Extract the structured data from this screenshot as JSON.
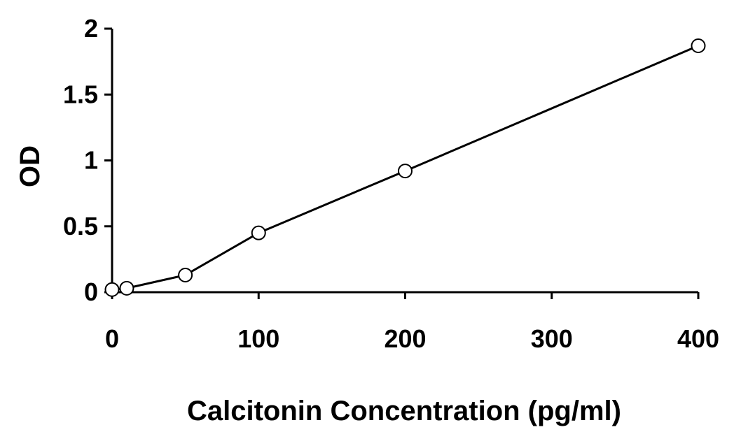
{
  "chart_data": {
    "type": "line",
    "xlabel": "Calcitonin Concentration (pg/ml)",
    "ylabel": "OD",
    "xlim": [
      0,
      400
    ],
    "ylim": [
      0,
      2
    ],
    "x_ticks": [
      0,
      100,
      200,
      300,
      400
    ],
    "y_ticks": [
      0,
      0.5,
      1,
      1.5,
      2
    ],
    "x_tick_labels": [
      "0",
      "100",
      "200",
      "300",
      "400"
    ],
    "y_tick_labels": [
      "0",
      "0.5",
      "1",
      "1.5",
      "2"
    ],
    "grid": false,
    "series": [
      {
        "x": [
          0,
          10,
          50,
          100,
          200,
          400
        ],
        "y": [
          0.02,
          0.03,
          0.13,
          0.45,
          0.92,
          1.87
        ],
        "marker": "circle-open",
        "color": "#000000"
      }
    ]
  }
}
